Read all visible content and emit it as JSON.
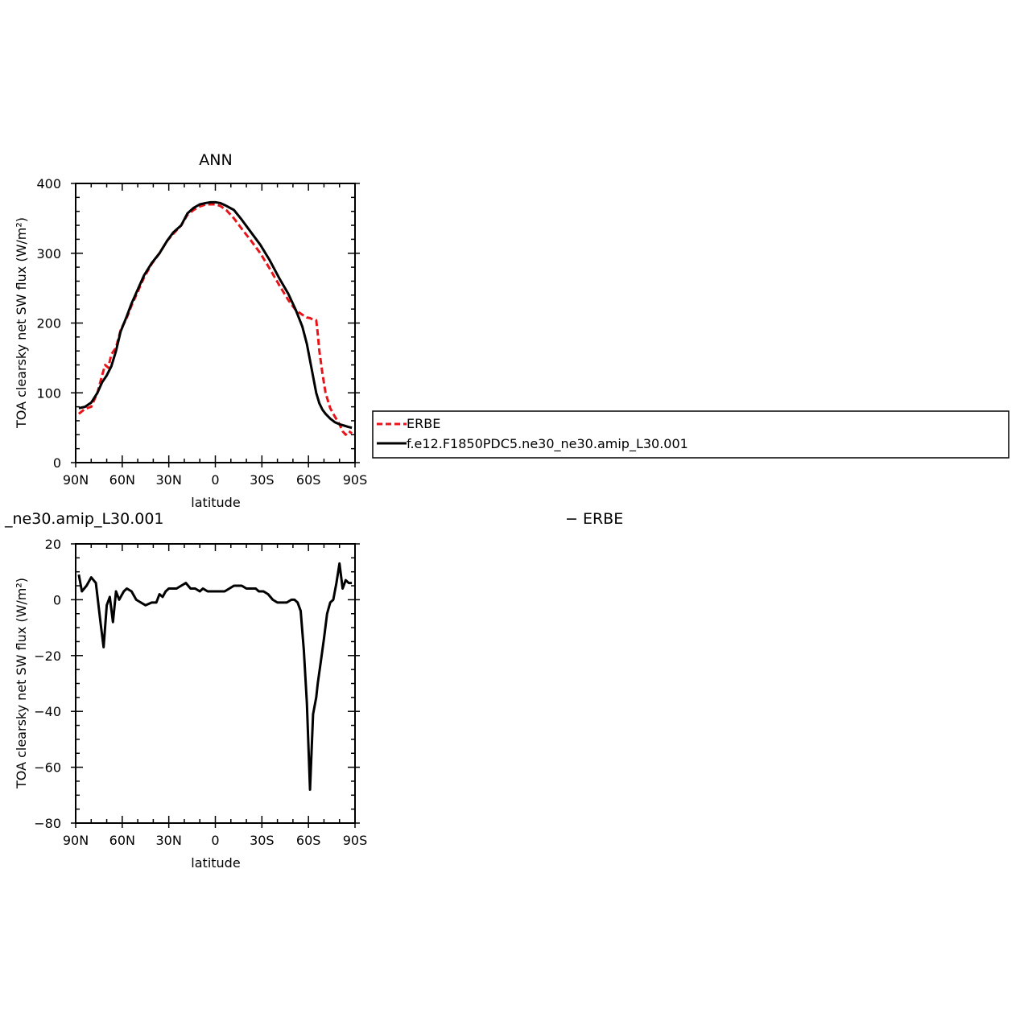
{
  "colors": {
    "obs": "#e8141a",
    "model": "#000000"
  },
  "chart_data": [
    {
      "type": "line",
      "title": "ANN",
      "xlabel": "latitude",
      "ylabel": "TOA clearsky net SW flux (W/m²)",
      "xlim": [
        90,
        -90
      ],
      "ylim": [
        0,
        400
      ],
      "xticks": [
        {
          "v": 90,
          "label": "90N"
        },
        {
          "v": 60,
          "label": "60N"
        },
        {
          "v": 30,
          "label": "30N"
        },
        {
          "v": 0,
          "label": "0"
        },
        {
          "v": -30,
          "label": "30S"
        },
        {
          "v": -60,
          "label": "60S"
        },
        {
          "v": -90,
          "label": "90S"
        }
      ],
      "yticks": [
        0,
        100,
        200,
        300,
        400
      ],
      "legend_position": "right",
      "series": [
        {
          "name": "ERBE",
          "style": "dashed",
          "color": "#e8141a",
          "x": [
            88,
            84,
            80,
            76,
            73,
            71,
            69,
            67,
            64,
            61,
            57,
            54,
            50,
            46,
            41,
            36,
            31,
            27,
            22,
            18,
            14,
            10,
            6,
            3,
            0,
            -3,
            -7,
            -12,
            -17,
            -23,
            -29,
            -35,
            -41,
            -47,
            -52,
            -56,
            -59,
            -61,
            -63,
            -65,
            -66,
            -67,
            -69,
            -71,
            -74,
            -77,
            -80,
            -82,
            -84,
            -86,
            -88
          ],
          "y": [
            70,
            77,
            80,
            100,
            125,
            140,
            136,
            155,
            165,
            190,
            208,
            225,
            245,
            265,
            285,
            300,
            318,
            328,
            340,
            355,
            362,
            367,
            370,
            370,
            370,
            368,
            362,
            350,
            335,
            318,
            300,
            278,
            255,
            233,
            218,
            212,
            208,
            207,
            205,
            204,
            185,
            160,
            128,
            100,
            78,
            66,
            55,
            45,
            40,
            45,
            42
          ]
        },
        {
          "name": "f.e12.F1850PDC5.ne30_ne30.amip_L30.001",
          "style": "solid",
          "color": "#000000",
          "x": [
            88,
            84,
            80,
            76,
            73,
            70,
            67,
            64,
            61,
            57,
            54,
            50,
            46,
            41,
            36,
            31,
            27,
            22,
            18,
            14,
            10,
            6,
            3,
            0,
            -3,
            -7,
            -12,
            -17,
            -23,
            -29,
            -35,
            -41,
            -47,
            -52,
            -56,
            -59,
            -62,
            -65,
            -67,
            -69,
            -71,
            -74,
            -77,
            -80,
            -83,
            -86,
            -88
          ],
          "y": [
            78,
            80,
            86,
            100,
            115,
            125,
            138,
            160,
            188,
            210,
            228,
            248,
            268,
            286,
            300,
            318,
            330,
            340,
            357,
            365,
            370,
            372,
            373,
            373,
            372,
            368,
            362,
            348,
            330,
            312,
            290,
            265,
            242,
            218,
            195,
            170,
            135,
            100,
            85,
            76,
            70,
            63,
            58,
            55,
            53,
            51,
            50
          ]
        }
      ]
    },
    {
      "type": "line",
      "title": "_ne30.amip_L30.001",
      "title_right": "− ERBE",
      "xlabel": "latitude",
      "ylabel": "TOA clearsky net SW flux (W/m²)",
      "xlim": [
        90,
        -90
      ],
      "ylim": [
        -80,
        20
      ],
      "xticks": [
        {
          "v": 90,
          "label": "90N"
        },
        {
          "v": 60,
          "label": "60N"
        },
        {
          "v": 30,
          "label": "30N"
        },
        {
          "v": 0,
          "label": "0"
        },
        {
          "v": -30,
          "label": "30S"
        },
        {
          "v": -60,
          "label": "60S"
        },
        {
          "v": -90,
          "label": "90S"
        }
      ],
      "yticks": [
        {
          "v": -80,
          "label": "−80"
        },
        {
          "v": -60,
          "label": "−60"
        },
        {
          "v": -40,
          "label": "−40"
        },
        {
          "v": -20,
          "label": "−20"
        },
        {
          "v": 0,
          "label": "0"
        },
        {
          "v": 20,
          "label": "20"
        }
      ],
      "series": [
        {
          "style": "solid",
          "color": "#000000",
          "x": [
            88,
            86,
            83,
            80,
            77,
            74,
            72,
            70,
            68,
            66,
            64,
            62,
            59,
            57,
            54,
            51,
            48,
            45,
            41,
            38,
            36,
            34,
            32,
            30,
            28,
            25,
            22,
            19,
            16,
            13,
            10,
            8,
            5,
            2,
            0,
            -3,
            -6,
            -9,
            -12,
            -14,
            -17,
            -20,
            -23,
            -26,
            -28,
            -31,
            -34,
            -37,
            -40,
            -43,
            -46,
            -49,
            -51,
            -53,
            -55,
            -57,
            -59,
            -61,
            -63,
            -65,
            -66,
            -68,
            -70,
            -72,
            -74,
            -76,
            -78,
            -80,
            -82,
            -84,
            -86,
            -88
          ],
          "y": [
            9,
            3,
            5,
            8,
            6,
            -8,
            -17,
            -2,
            1,
            -8,
            3,
            0,
            3,
            4,
            3,
            0,
            -1,
            -2,
            -1,
            -1,
            2,
            1,
            3,
            4,
            4,
            4,
            5,
            6,
            4,
            4,
            3,
            4,
            3,
            3,
            3,
            3,
            3,
            4,
            5,
            5,
            5,
            4,
            4,
            4,
            3,
            3,
            2,
            0,
            -1,
            -1,
            -1,
            0,
            0,
            -1,
            -4,
            -18,
            -37,
            -68,
            -41,
            -35,
            -30,
            -22,
            -14,
            -5,
            -1,
            0,
            6,
            13,
            4,
            7,
            6,
            6
          ]
        }
      ]
    }
  ],
  "legend": {
    "items": [
      {
        "label": "ERBE",
        "style": "dashed",
        "color": "#e8141a"
      },
      {
        "label": "f.e12.F1850PDC5.ne30_ne30.amip_L30.001",
        "style": "solid",
        "color": "#000000"
      }
    ]
  }
}
